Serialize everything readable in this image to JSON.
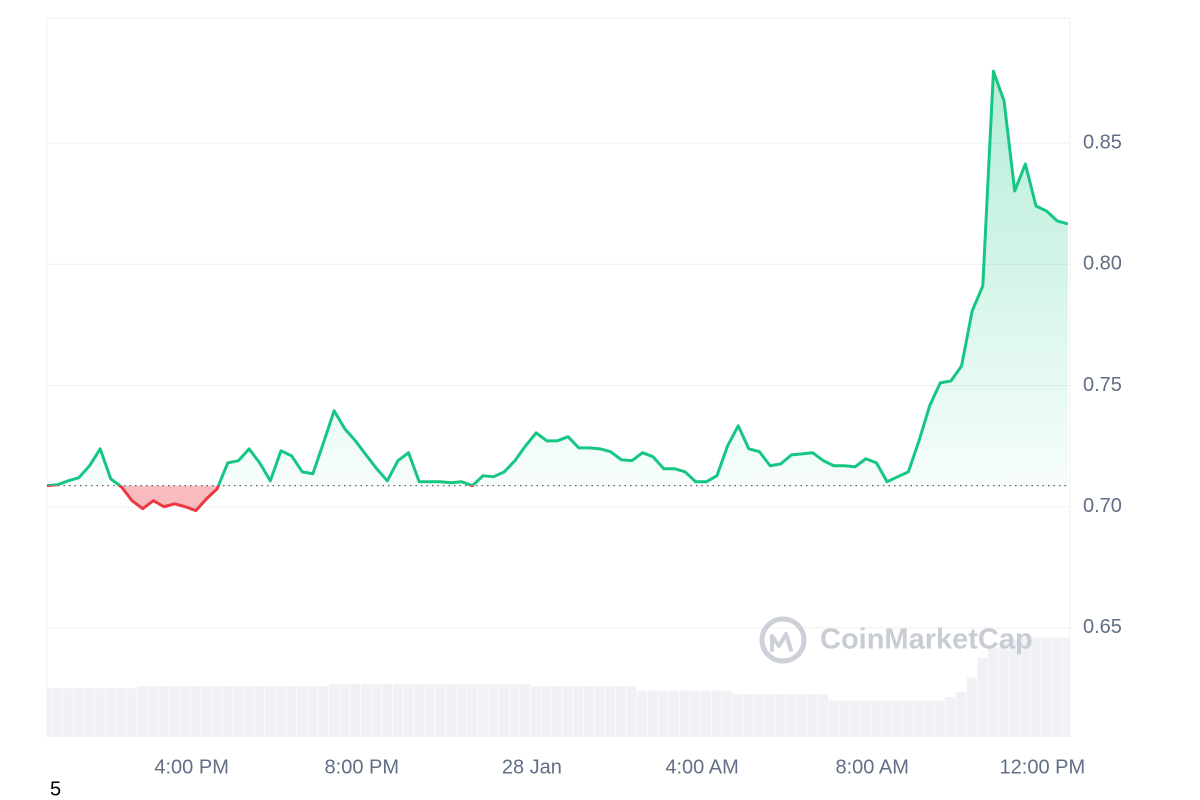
{
  "chart_data": {
    "type": "line",
    "x": [
      12.6,
      12.85,
      13.1,
      13.35,
      13.6,
      13.85,
      14.1,
      14.35,
      14.6,
      14.85,
      15.1,
      15.35,
      15.6,
      15.85,
      16.1,
      16.35,
      16.6,
      16.85,
      17.1,
      17.35,
      17.6,
      17.85,
      18.1,
      18.35,
      18.6,
      18.85,
      19.1,
      19.35,
      19.6,
      19.85,
      20.1,
      20.35,
      20.6,
      20.85,
      21.1,
      21.35,
      21.6,
      21.85,
      22.1,
      22.35,
      22.6,
      22.85,
      23.1,
      23.35,
      23.6,
      23.85,
      24.1,
      24.35,
      24.6,
      24.85,
      25.1,
      25.35,
      25.6,
      25.85,
      26.1,
      26.35,
      26.6,
      26.85,
      27.1,
      27.35,
      27.6,
      27.85,
      28.1,
      28.35,
      28.6,
      28.85,
      29.1,
      29.35,
      29.6,
      29.85,
      30.1,
      30.35,
      30.6,
      30.85,
      31.1,
      31.35,
      31.6,
      31.85,
      32.1,
      32.35,
      32.6,
      32.85,
      33.1,
      33.35,
      33.6,
      33.85,
      34.1,
      34.35,
      34.6,
      34.85,
      35.1,
      35.35,
      35.6,
      35.85,
      36.1,
      36.35,
      36.6
    ],
    "series": [
      {
        "color": "#16c784",
        "below_color": "#ea3943",
        "values": [
          0.7087,
          0.7091,
          0.7107,
          0.712,
          0.7169,
          0.7239,
          0.7115,
          0.7082,
          0.7025,
          0.6992,
          0.7025,
          0.7,
          0.7012,
          0.7,
          0.6984,
          0.7033,
          0.7074,
          0.7181,
          0.719,
          0.7239,
          0.7181,
          0.7107,
          0.7231,
          0.721,
          0.7144,
          0.7136,
          0.7264,
          0.7396,
          0.7322,
          0.7272,
          0.7214,
          0.7157,
          0.7107,
          0.719,
          0.7223,
          0.7103,
          0.7103,
          0.7103,
          0.7099,
          0.7103,
          0.7087,
          0.7128,
          0.7124,
          0.7144,
          0.719,
          0.7251,
          0.7305,
          0.7272,
          0.7272,
          0.7289,
          0.7243,
          0.7243,
          0.7239,
          0.7227,
          0.7194,
          0.719,
          0.7223,
          0.7206,
          0.7157,
          0.7157,
          0.7144,
          0.7103,
          0.7103,
          0.7128,
          0.7251,
          0.7334,
          0.7239,
          0.7227,
          0.7169,
          0.7177,
          0.7214,
          0.7218,
          0.7223,
          0.719,
          0.7169,
          0.7169,
          0.7165,
          0.7198,
          0.7181,
          0.7103,
          0.7124,
          0.7144,
          0.7272,
          0.7416,
          0.7511,
          0.7519,
          0.7581,
          0.7808,
          0.7911,
          0.8797,
          0.8674,
          0.8303,
          0.8414,
          0.8241,
          0.822,
          0.8179,
          0.8167
        ]
      },
      {
        "color": "#eff1f5",
        "axis": "y2",
        "values": [
          6.8,
          6.8,
          6.8,
          6.8,
          6.8,
          6.8,
          6.8,
          6.8,
          6.8,
          7.1,
          7.1,
          7.1,
          7.1,
          7.1,
          7.1,
          7.1,
          7.1,
          7.1,
          7.1,
          7.1,
          7.1,
          7.1,
          7.1,
          7.1,
          7.1,
          7.1,
          7.1,
          7.4,
          7.4,
          7.4,
          7.4,
          7.4,
          7.4,
          7.4,
          7.4,
          7.4,
          7.4,
          7.4,
          7.4,
          7.4,
          7.4,
          7.4,
          7.4,
          7.4,
          7.4,
          7.4,
          7.1,
          7.1,
          7.1,
          7.1,
          7.1,
          7.1,
          7.1,
          7.1,
          7.1,
          7.1,
          6.5,
          6.5,
          6.5,
          6.5,
          6.5,
          6.5,
          6.5,
          6.5,
          6.5,
          6.0,
          6.0,
          6.0,
          6.0,
          6.0,
          6.0,
          6.0,
          6.0,
          6.0,
          5.1,
          5.1,
          5.1,
          5.1,
          5.1,
          5.1,
          5.1,
          5.1,
          5.1,
          5.1,
          5.1,
          5.6,
          6.3,
          8.3,
          11.1,
          12.5,
          13.2,
          13.6,
          13.9,
          13.9,
          13.9,
          13.9,
          13.9
        ]
      }
    ],
    "xlim": [
      12.6,
      36.65
    ],
    "xticks": [
      {
        "value": 16,
        "label": "4:00 PM"
      },
      {
        "value": 20,
        "label": "8:00 PM"
      },
      {
        "value": 24,
        "label": "28 Jan"
      },
      {
        "value": 28,
        "label": "4:00 AM"
      },
      {
        "value": 32,
        "label": "8:00 AM"
      },
      {
        "value": 36,
        "label": "12:00 PM"
      }
    ],
    "ylim": [
      0.605,
      0.9
    ],
    "yticks": [
      0.65,
      {
        "value": 0.7,
        "label": "0.70"
      },
      0.75,
      {
        "value": 0.8,
        "label": "0.80"
      },
      0.85
    ],
    "y2lim": [
      0,
      100
    ],
    "grid": true,
    "watermark": "CoinMarketCap",
    "footnote": "5"
  }
}
